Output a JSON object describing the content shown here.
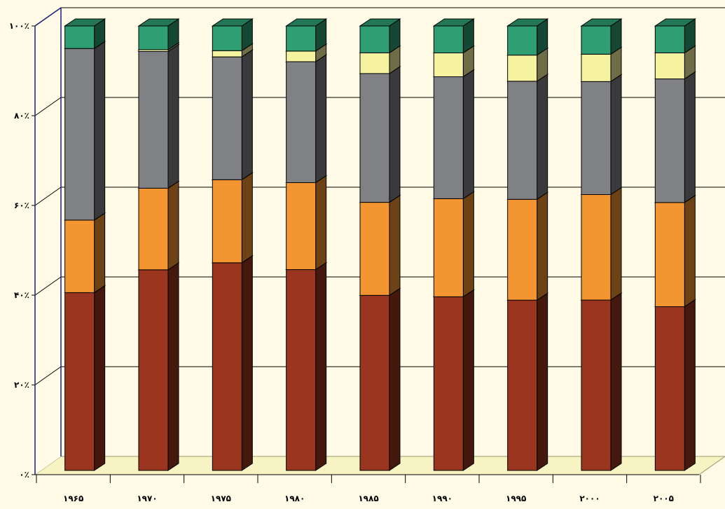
{
  "chart_data": {
    "type": "bar",
    "stacked": true,
    "percent_stacked": true,
    "three_d": true,
    "title": "",
    "xlabel": "",
    "ylabel": "",
    "ylim": [
      0,
      100
    ],
    "y_ticks": [
      "۰٪",
      "۲۰٪",
      "۴۰٪",
      "۶۰٪",
      "۸۰٪",
      "۱۰۰٪"
    ],
    "y_tick_values": [
      0,
      20,
      40,
      60,
      80,
      100
    ],
    "categories": [
      "۱۹۶۵",
      "۱۹۷۰",
      "۱۹۷۵",
      "۱۹۸۰",
      "۱۹۸۵",
      "۱۹۹۰",
      "۱۹۹۵",
      "۲۰۰۰",
      "۲۰۰۵"
    ],
    "grid": true,
    "legend": "none",
    "series": [
      {
        "values": [
          40.2,
          45.5,
          47.0,
          45.5,
          39.7,
          39.3,
          38.5,
          38.6,
          37.1
        ],
        "color": "#9a3520"
      },
      {
        "values": [
          16.4,
          18.5,
          18.8,
          19.7,
          21.1,
          22.2,
          22.8,
          23.9,
          23.6
        ],
        "color": "#f39530"
      },
      {
        "values": [
          38.8,
          31.0,
          27.8,
          27.4,
          29.2,
          27.6,
          26.7,
          25.6,
          28.0
        ],
        "color": "#808185"
      },
      {
        "values": [
          0.0,
          0.4,
          1.4,
          2.4,
          4.7,
          5.4,
          5.9,
          6.2,
          5.9
        ],
        "color": "#f5f3a0"
      },
      {
        "values": [
          5.1,
          5.4,
          5.6,
          5.7,
          6.1,
          6.1,
          6.6,
          6.4,
          6.1
        ],
        "color": "#2f9f73"
      }
    ]
  }
}
